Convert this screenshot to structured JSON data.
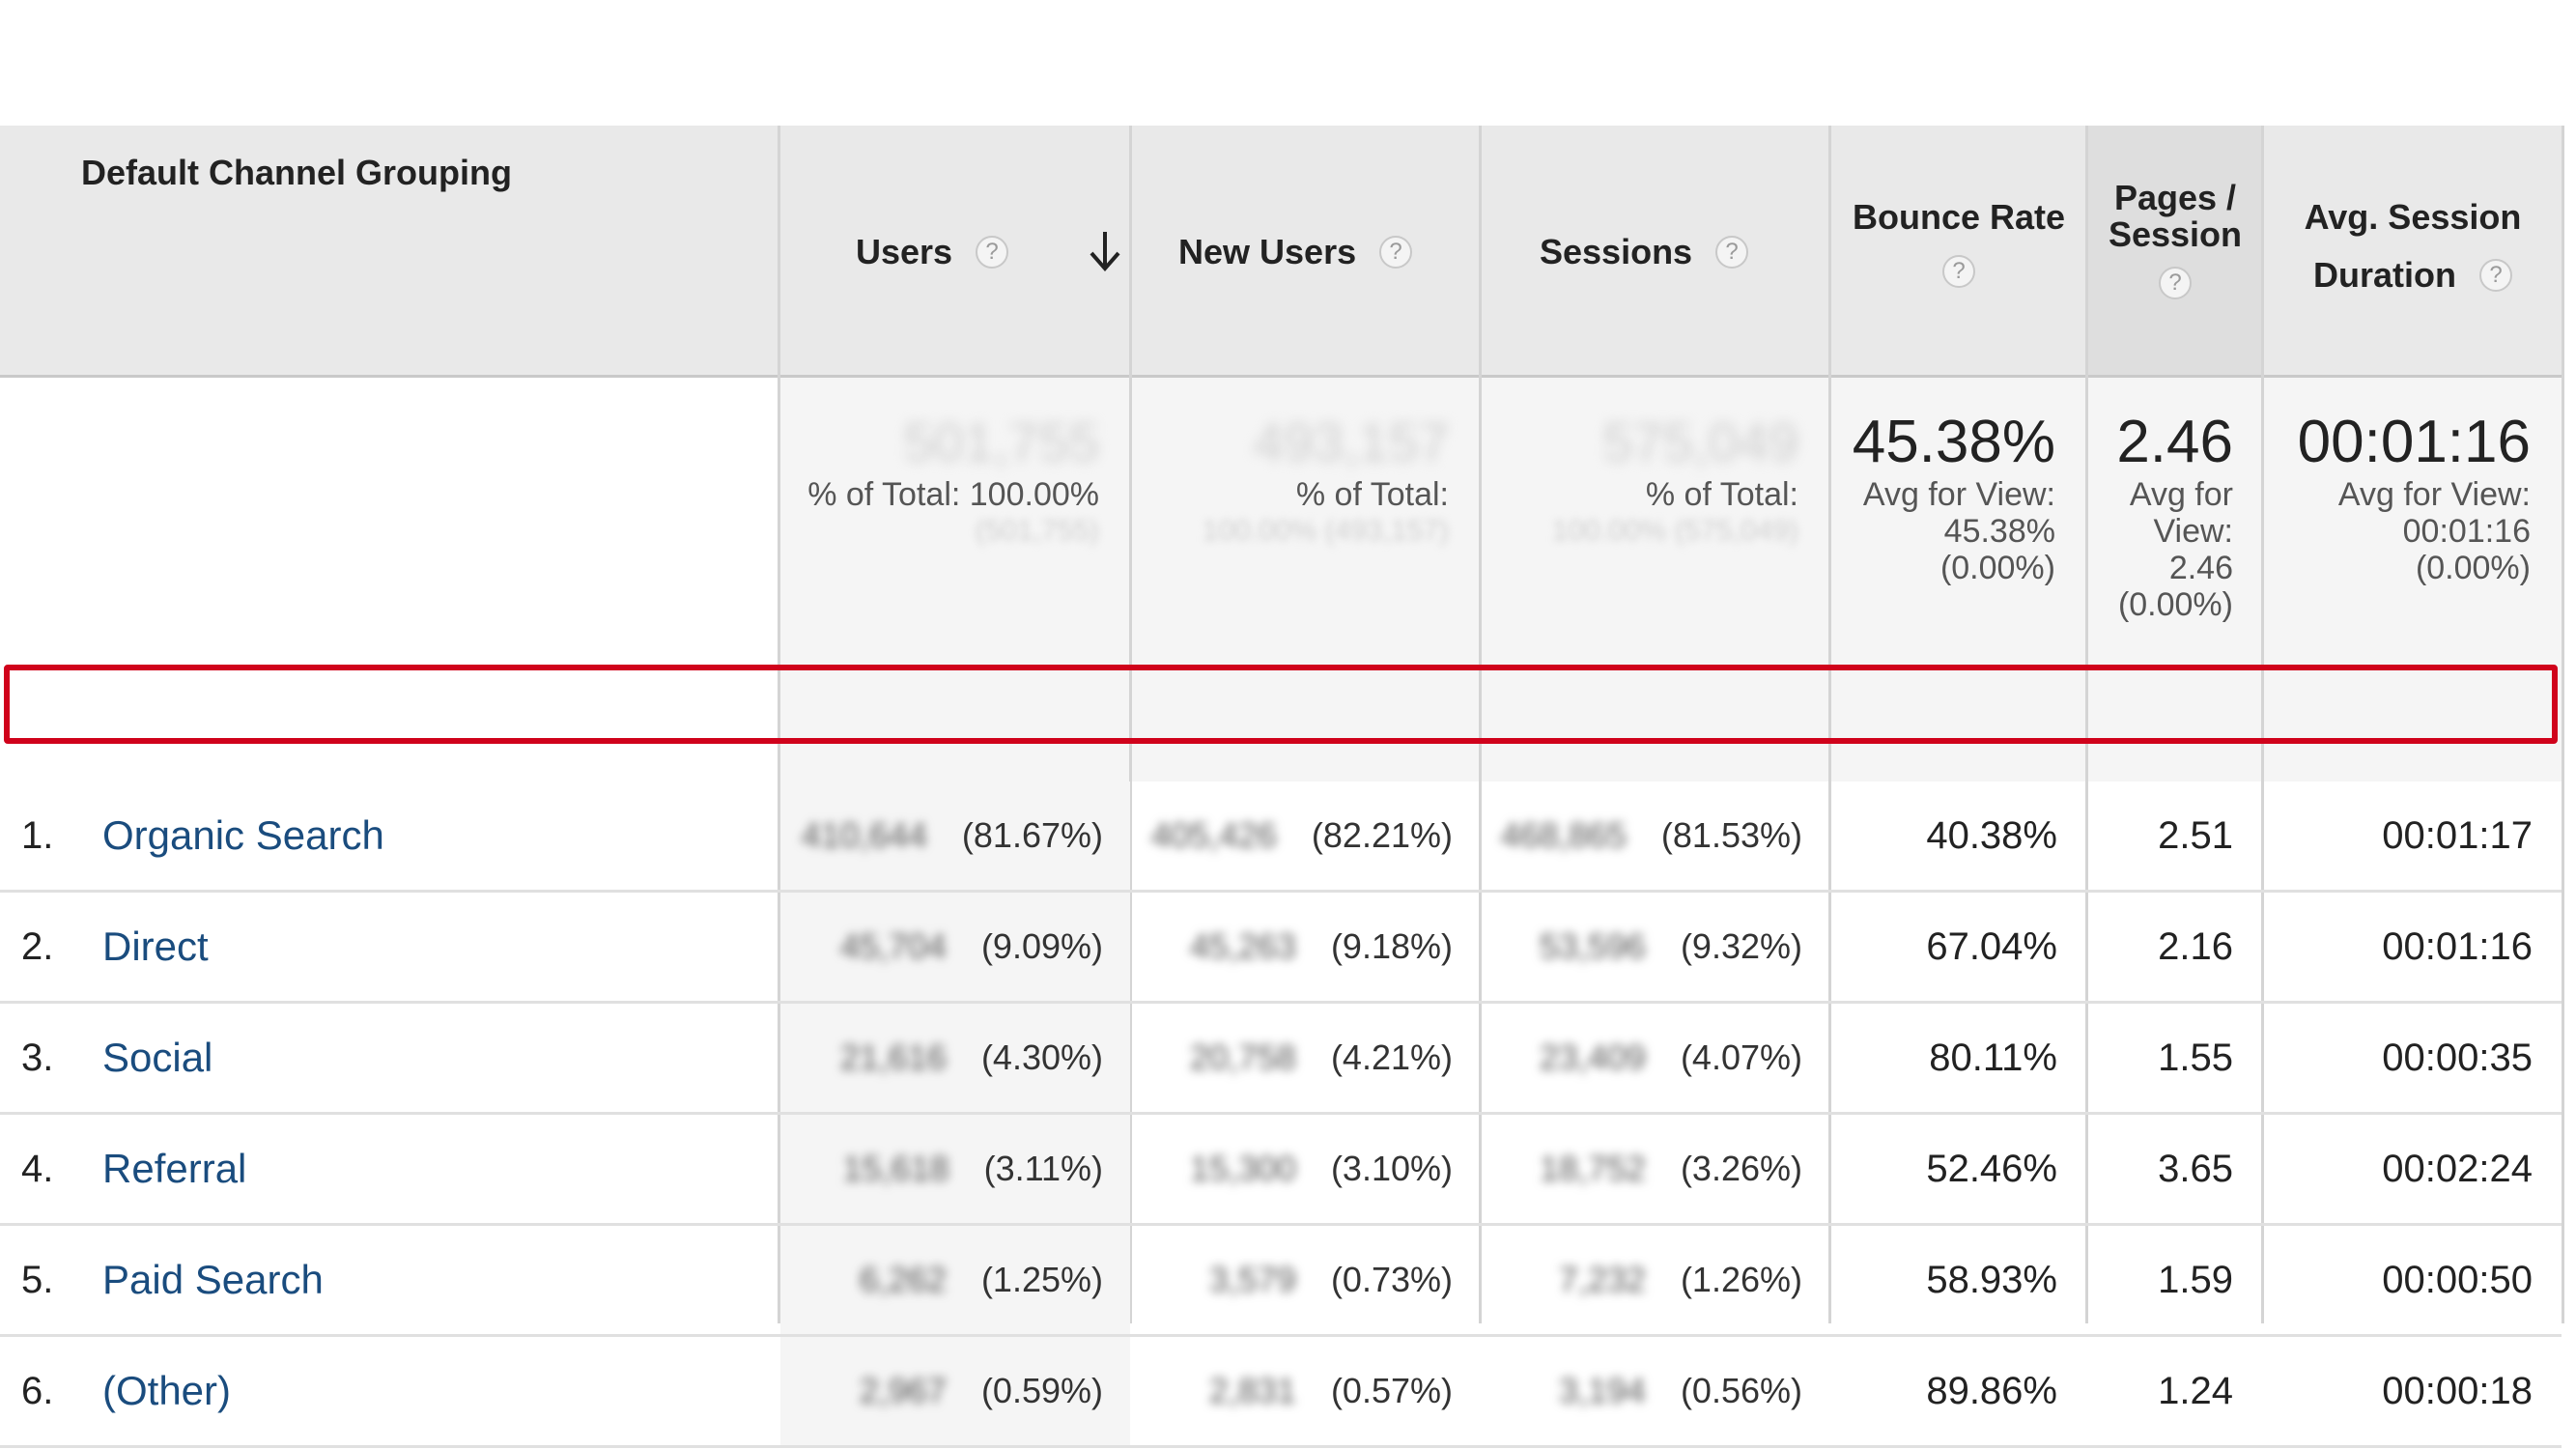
{
  "headers": {
    "dimension": "Default Channel Grouping",
    "users": "Users",
    "new_users": "New Users",
    "sessions": "Sessions",
    "bounce_rate": "Bounce Rate",
    "pages_session_1": "Pages /",
    "pages_session_2": "Session",
    "avg_duration_1": "Avg. Session",
    "avg_duration_2": "Duration",
    "help": "?",
    "sort_icon": "arrow-down-icon"
  },
  "summary": {
    "users_total": "501,755",
    "users_pct_label": "% of Total: 100.00%",
    "users_pct_sub": "(501,755)",
    "new_users_total": "493,157",
    "new_users_pct_label": "% of Total:",
    "new_users_pct_sub": "100.00% (493,157)",
    "sessions_total": "575,049",
    "sessions_pct_label": "% of Total:",
    "sessions_pct_sub": "100.00% (575,049)",
    "bounce_rate": "45.38%",
    "bounce_l1": "Avg for View:",
    "bounce_l2": "45.38%",
    "bounce_l3": "(0.00%)",
    "pages": "2.46",
    "pages_l1": "Avg for",
    "pages_l2": "View:",
    "pages_l3": "2.46",
    "pages_l4": "(0.00%)",
    "duration": "00:01:16",
    "duration_l1": "Avg for View:",
    "duration_l2": "00:01:16",
    "duration_l3": "(0.00%)"
  },
  "rows": [
    {
      "num": "1.",
      "channel": "Organic Search",
      "users": "410,644",
      "users_pct": "(81.67%)",
      "new_users": "405,426",
      "new_users_pct": "(82.21%)",
      "sessions": "468,865",
      "sessions_pct": "(81.53%)",
      "bounce": "40.38%",
      "pages": "2.51",
      "duration": "00:01:17"
    },
    {
      "num": "2.",
      "channel": "Direct",
      "users": "45,704",
      "users_pct": "(9.09%)",
      "new_users": "45,263",
      "new_users_pct": "(9.18%)",
      "sessions": "53,596",
      "sessions_pct": "(9.32%)",
      "bounce": "67.04%",
      "pages": "2.16",
      "duration": "00:01:16"
    },
    {
      "num": "3.",
      "channel": "Social",
      "users": "21,616",
      "users_pct": "(4.30%)",
      "new_users": "20,758",
      "new_users_pct": "(4.21%)",
      "sessions": "23,409",
      "sessions_pct": "(4.07%)",
      "bounce": "80.11%",
      "pages": "1.55",
      "duration": "00:00:35"
    },
    {
      "num": "4.",
      "channel": "Referral",
      "users": "15,618",
      "users_pct": "(3.11%)",
      "new_users": "15,300",
      "new_users_pct": "(3.10%)",
      "sessions": "18,752",
      "sessions_pct": "(3.26%)",
      "bounce": "52.46%",
      "pages": "3.65",
      "duration": "00:02:24"
    },
    {
      "num": "5.",
      "channel": "Paid Search",
      "users": "6,262",
      "users_pct": "(1.25%)",
      "new_users": "3,579",
      "new_users_pct": "(0.73%)",
      "sessions": "7,232",
      "sessions_pct": "(1.26%)",
      "bounce": "58.93%",
      "pages": "1.59",
      "duration": "00:00:50"
    },
    {
      "num": "6.",
      "channel": "(Other)",
      "users": "2,967",
      "users_pct": "(0.59%)",
      "new_users": "2,831",
      "new_users_pct": "(0.57%)",
      "sessions": "3,194",
      "sessions_pct": "(0.56%)",
      "bounce": "89.86%",
      "pages": "1.24",
      "duration": "00:00:18"
    }
  ],
  "colors": {
    "header_bg": "#e9e9e9",
    "link": "#1a4c7e",
    "highlight": "#d0021b"
  }
}
